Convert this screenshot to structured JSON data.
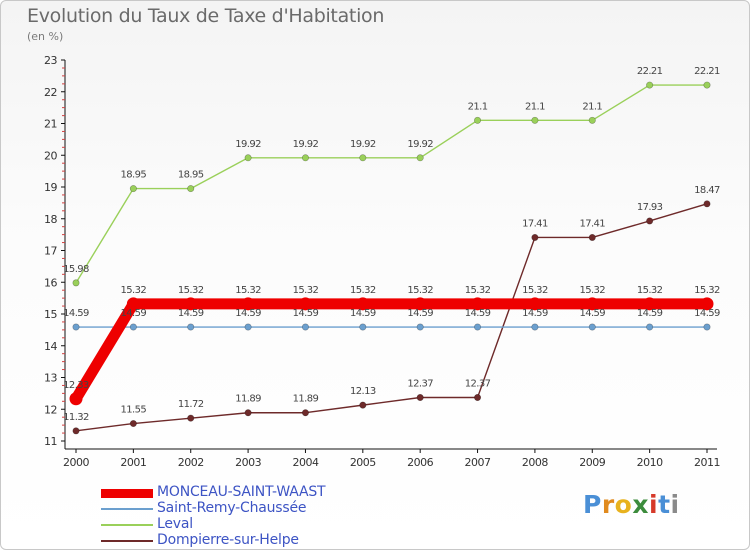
{
  "chart_data": {
    "type": "line",
    "title": "Evolution du Taux de Taxe d'Habitation",
    "unit": "(en %)",
    "x": [
      "2000",
      "2001",
      "2002",
      "2003",
      "2004",
      "2005",
      "2006",
      "2007",
      "2008",
      "2009",
      "2010",
      "2011"
    ],
    "ylim": [
      11,
      23
    ],
    "yticks": [
      11,
      12,
      13,
      14,
      15,
      16,
      17,
      18,
      19,
      20,
      21,
      22,
      23
    ],
    "grid": false,
    "legend_position": "bottom-left",
    "series": [
      {
        "name": "Leval",
        "color": "#9ad05a",
        "values": [
          15.98,
          18.95,
          18.95,
          19.92,
          19.92,
          19.92,
          19.92,
          21.1,
          21.1,
          21.1,
          22.21,
          22.21
        ],
        "labels": [
          "15.98",
          "18.95",
          "18.95",
          "19.92",
          "19.92",
          "19.92",
          "19.92",
          "21.1",
          "21.1",
          "21.1",
          "22.21",
          "22.21"
        ]
      },
      {
        "name": "Dompierre-sur-Helpe",
        "color": "#6e2a2a",
        "values": [
          11.32,
          11.55,
          11.72,
          11.89,
          11.89,
          12.13,
          12.37,
          12.37,
          17.41,
          17.41,
          17.93,
          18.47
        ],
        "labels": [
          "11.32",
          "11.55",
          "11.72",
          "11.89",
          "11.89",
          "12.13",
          "12.37",
          "12.37",
          "17.41",
          "17.41",
          "17.93",
          "18.47"
        ]
      },
      {
        "name": "Saint-Remy-Chaussée",
        "color": "#6b9fce",
        "values": [
          14.59,
          14.59,
          14.59,
          14.59,
          14.59,
          14.59,
          14.59,
          14.59,
          14.59,
          14.59,
          14.59,
          14.59
        ],
        "labels": [
          "14.59",
          "14.59",
          "14.59",
          "14.59",
          "14.59",
          "14.59",
          "14.59",
          "14.59",
          "14.59",
          "14.59",
          "14.59",
          "14.59"
        ]
      },
      {
        "name": "MONCEAU-SAINT-WAAST",
        "color": "#ee0000",
        "values": [
          12.33,
          15.32,
          15.32,
          15.32,
          15.32,
          15.32,
          15.32,
          15.32,
          15.32,
          15.32,
          15.32,
          15.32
        ],
        "labels": [
          "12.33",
          "15.32",
          "15.32",
          "15.32",
          "15.32",
          "15.32",
          "15.32",
          "15.32",
          "15.32",
          "15.32",
          "15.32",
          "15.32"
        ]
      }
    ]
  },
  "legend": [
    {
      "label": "MONCEAU-SAINT-WAAST",
      "color": "#ee0000"
    },
    {
      "label": "Saint-Remy-Chaussée",
      "color": "#6b9fce"
    },
    {
      "label": "Leval",
      "color": "#9ad05a"
    },
    {
      "label": "Dompierre-sur-Helpe",
      "color": "#6e2a2a"
    }
  ],
  "logo": {
    "text": "Proxiti",
    "letters": [
      "P",
      "r",
      "o",
      "x",
      "i",
      "t",
      "i"
    ],
    "colors": [
      "#4a8fd6",
      "#e08a1e",
      "#e8b21e",
      "#3c8c3c",
      "#d63a2a",
      "#4a8fd6",
      "#8a8a8a"
    ]
  }
}
